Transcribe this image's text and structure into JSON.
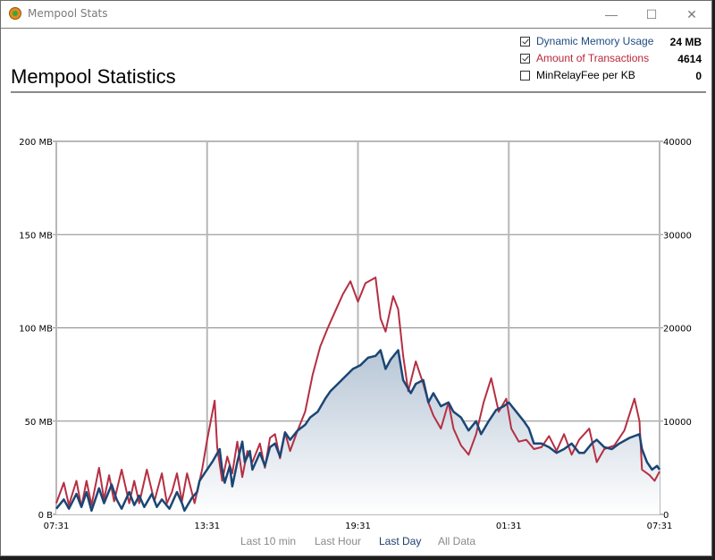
{
  "window": {
    "title": "Mempool Stats",
    "icon": "bitcoin-app-icon",
    "controls": {
      "minimize": "—",
      "maximize": "☐",
      "close": "✕"
    }
  },
  "heading": "Mempool Statistics",
  "legend": [
    {
      "label": "Dynamic Memory Usage",
      "value": "24 MB",
      "checked": true,
      "color": "#1e4a82"
    },
    {
      "label": "Amount of Transactions",
      "value": "4614",
      "checked": true,
      "color": "#b8273a"
    },
    {
      "label": "MinRelayFee per KB",
      "value": "0",
      "checked": false,
      "color": "#000000"
    }
  ],
  "range_buttons": [
    {
      "label": "Last 10 min",
      "active": false
    },
    {
      "label": "Last Hour",
      "active": false
    },
    {
      "label": "Last Day",
      "active": true
    },
    {
      "label": "All Data",
      "active": false
    }
  ],
  "colors": {
    "memory_line": "#1b4675",
    "tx_line": "#b52f43",
    "fill_top": "#b7c6d6",
    "fill_bottom": "#ffffff",
    "grid_major": "#b8b8b8",
    "grid_minor": "#888888"
  },
  "chart_data": {
    "type": "line",
    "title": "Mempool Statistics",
    "xlabel": "",
    "ylabel_left": "Dynamic Memory Usage",
    "ylabel_right": "Amount of Transactions",
    "x_unit": "hours since 07:31",
    "x_range": [
      0,
      24
    ],
    "x_ticks": [
      {
        "value": 0,
        "label": "07:31"
      },
      {
        "value": 6,
        "label": "13:31"
      },
      {
        "value": 12,
        "label": "19:31"
      },
      {
        "value": 18,
        "label": "01:31"
      },
      {
        "value": 24,
        "label": "07:31"
      }
    ],
    "y_left_range": [
      0,
      200
    ],
    "y_left_ticks": [
      {
        "value": 0,
        "label": "0 B"
      },
      {
        "value": 50,
        "label": "50 MB"
      },
      {
        "value": 100,
        "label": "100 MB"
      },
      {
        "value": 150,
        "label": "150 MB"
      },
      {
        "value": 200,
        "label": "200 MB"
      }
    ],
    "y_right_range": [
      0,
      40000
    ],
    "y_right_ticks": [
      {
        "value": 0,
        "label": "0"
      },
      {
        "value": 10000,
        "label": "10000"
      },
      {
        "value": 20000,
        "label": "20000"
      },
      {
        "value": 30000,
        "label": "30000"
      },
      {
        "value": 40000,
        "label": "40000"
      }
    ],
    "grid": true,
    "series": [
      {
        "name": "Dynamic Memory Usage",
        "axis": "left",
        "unit": "MB",
        "filled": true,
        "points": [
          [
            0,
            3
          ],
          [
            0.3,
            8
          ],
          [
            0.5,
            3
          ],
          [
            0.8,
            11
          ],
          [
            1.0,
            4
          ],
          [
            1.2,
            12
          ],
          [
            1.4,
            2
          ],
          [
            1.7,
            14
          ],
          [
            1.9,
            6
          ],
          [
            2.2,
            16
          ],
          [
            2.4,
            8
          ],
          [
            2.6,
            3
          ],
          [
            2.9,
            12
          ],
          [
            3.1,
            5
          ],
          [
            3.3,
            10
          ],
          [
            3.5,
            4
          ],
          [
            3.8,
            11
          ],
          [
            4.0,
            4
          ],
          [
            4.2,
            8
          ],
          [
            4.5,
            3
          ],
          [
            4.8,
            12
          ],
          [
            5.0,
            6
          ],
          [
            5.1,
            2
          ],
          [
            5.4,
            9
          ],
          [
            5.6,
            12
          ],
          [
            5.7,
            18
          ],
          [
            5.9,
            22
          ],
          [
            6.2,
            28
          ],
          [
            6.5,
            35
          ],
          [
            6.6,
            24
          ],
          [
            6.7,
            17
          ],
          [
            6.9,
            26
          ],
          [
            7.0,
            15
          ],
          [
            7.2,
            28
          ],
          [
            7.4,
            39
          ],
          [
            7.5,
            28
          ],
          [
            7.7,
            34
          ],
          [
            7.8,
            24
          ],
          [
            8.1,
            33
          ],
          [
            8.3,
            26
          ],
          [
            8.5,
            36
          ],
          [
            8.7,
            38
          ],
          [
            8.9,
            31
          ],
          [
            9.1,
            44
          ],
          [
            9.3,
            40
          ],
          [
            9.6,
            45
          ],
          [
            9.9,
            48
          ],
          [
            10.1,
            52
          ],
          [
            10.4,
            55
          ],
          [
            10.7,
            62
          ],
          [
            10.9,
            66
          ],
          [
            11.2,
            70
          ],
          [
            11.5,
            74
          ],
          [
            11.8,
            78
          ],
          [
            12.1,
            80
          ],
          [
            12.4,
            84
          ],
          [
            12.7,
            85
          ],
          [
            12.9,
            88
          ],
          [
            13.1,
            78
          ],
          [
            13.3,
            83
          ],
          [
            13.6,
            88
          ],
          [
            13.8,
            72
          ],
          [
            14.1,
            65
          ],
          [
            14.3,
            70
          ],
          [
            14.6,
            72
          ],
          [
            14.8,
            60
          ],
          [
            15.0,
            65
          ],
          [
            15.3,
            58
          ],
          [
            15.6,
            60
          ],
          [
            15.8,
            55
          ],
          [
            16.1,
            52
          ],
          [
            16.4,
            45
          ],
          [
            16.7,
            50
          ],
          [
            16.9,
            43
          ],
          [
            17.2,
            50
          ],
          [
            17.5,
            56
          ],
          [
            17.8,
            58
          ],
          [
            18.0,
            60
          ],
          [
            18.3,
            55
          ],
          [
            18.6,
            50
          ],
          [
            18.8,
            46
          ],
          [
            19.0,
            38
          ],
          [
            19.3,
            38
          ],
          [
            19.6,
            36
          ],
          [
            19.9,
            33
          ],
          [
            20.2,
            35
          ],
          [
            20.5,
            38
          ],
          [
            20.8,
            33
          ],
          [
            21.0,
            33
          ],
          [
            21.3,
            38
          ],
          [
            21.5,
            40
          ],
          [
            21.8,
            36
          ],
          [
            22.1,
            35
          ],
          [
            22.4,
            38
          ],
          [
            22.8,
            41
          ],
          [
            23.2,
            43
          ],
          [
            23.3,
            35
          ],
          [
            23.5,
            28
          ],
          [
            23.7,
            24
          ],
          [
            23.9,
            26
          ],
          [
            24.0,
            24
          ]
        ]
      },
      {
        "name": "Amount of Transactions",
        "axis": "right",
        "unit": "count",
        "filled": false,
        "points": [
          [
            0,
            1200
          ],
          [
            0.3,
            3400
          ],
          [
            0.5,
            1000
          ],
          [
            0.8,
            3600
          ],
          [
            1.0,
            800
          ],
          [
            1.2,
            3600
          ],
          [
            1.4,
            1000
          ],
          [
            1.7,
            5000
          ],
          [
            1.9,
            1600
          ],
          [
            2.1,
            4200
          ],
          [
            2.3,
            1400
          ],
          [
            2.6,
            4800
          ],
          [
            2.9,
            1200
          ],
          [
            3.1,
            3600
          ],
          [
            3.3,
            1200
          ],
          [
            3.6,
            4800
          ],
          [
            3.9,
            1400
          ],
          [
            4.2,
            4400
          ],
          [
            4.4,
            1200
          ],
          [
            4.6,
            2400
          ],
          [
            4.8,
            4400
          ],
          [
            5.0,
            1400
          ],
          [
            5.2,
            4400
          ],
          [
            5.5,
            1200
          ],
          [
            5.8,
            4800
          ],
          [
            6.0,
            8000
          ],
          [
            6.3,
            12200
          ],
          [
            6.4,
            7200
          ],
          [
            6.6,
            3600
          ],
          [
            6.8,
            6200
          ],
          [
            7.0,
            4400
          ],
          [
            7.2,
            7800
          ],
          [
            7.4,
            4000
          ],
          [
            7.6,
            6800
          ],
          [
            7.8,
            5600
          ],
          [
            8.1,
            7600
          ],
          [
            8.3,
            5000
          ],
          [
            8.5,
            8200
          ],
          [
            8.7,
            8600
          ],
          [
            8.9,
            6000
          ],
          [
            9.1,
            8800
          ],
          [
            9.3,
            6800
          ],
          [
            9.6,
            9000
          ],
          [
            9.9,
            11000
          ],
          [
            10.2,
            15000
          ],
          [
            10.5,
            18000
          ],
          [
            10.8,
            20000
          ],
          [
            11.1,
            21800
          ],
          [
            11.4,
            23600
          ],
          [
            11.7,
            25000
          ],
          [
            12.0,
            22800
          ],
          [
            12.3,
            24800
          ],
          [
            12.7,
            25400
          ],
          [
            12.9,
            21000
          ],
          [
            13.1,
            19600
          ],
          [
            13.4,
            23400
          ],
          [
            13.6,
            22000
          ],
          [
            13.8,
            17000
          ],
          [
            14.0,
            13200
          ],
          [
            14.3,
            16400
          ],
          [
            14.6,
            14000
          ],
          [
            14.8,
            12000
          ],
          [
            15.0,
            10600
          ],
          [
            15.3,
            9200
          ],
          [
            15.6,
            12000
          ],
          [
            15.8,
            9200
          ],
          [
            16.1,
            7400
          ],
          [
            16.4,
            6400
          ],
          [
            16.7,
            8600
          ],
          [
            17.0,
            12000
          ],
          [
            17.3,
            14600
          ],
          [
            17.6,
            11000
          ],
          [
            17.9,
            12400
          ],
          [
            18.1,
            9200
          ],
          [
            18.4,
            7800
          ],
          [
            18.7,
            8000
          ],
          [
            19.0,
            7000
          ],
          [
            19.3,
            7200
          ],
          [
            19.6,
            8400
          ],
          [
            19.9,
            6800
          ],
          [
            20.2,
            8600
          ],
          [
            20.5,
            6400
          ],
          [
            20.8,
            8000
          ],
          [
            21.2,
            9200
          ],
          [
            21.5,
            5600
          ],
          [
            21.8,
            7000
          ],
          [
            22.2,
            7400
          ],
          [
            22.6,
            9000
          ],
          [
            23.0,
            12400
          ],
          [
            23.2,
            10000
          ],
          [
            23.3,
            4800
          ],
          [
            23.6,
            4200
          ],
          [
            23.8,
            3600
          ],
          [
            24.0,
            4600
          ]
        ]
      }
    ]
  }
}
